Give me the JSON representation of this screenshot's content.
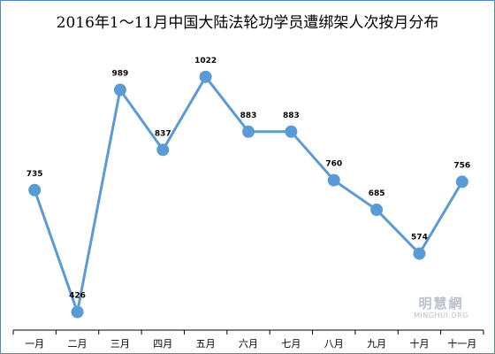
{
  "chart_data": {
    "type": "line",
    "title": "2016年1～11月中国大陆法轮功学员遭绑架人次按月分布",
    "categories": [
      "一月",
      "二月",
      "三月",
      "四月",
      "五月",
      "六月",
      "七月",
      "八月",
      "九月",
      "十月",
      "十一月"
    ],
    "series": [
      {
        "values": [
          735,
          426,
          989,
          837,
          1022,
          883,
          883,
          760,
          685,
          574,
          756
        ]
      }
    ],
    "ylim": [
      380,
      1080
    ],
    "grid": false,
    "legend": "none",
    "line_color": "#5b9bd5",
    "marker_color": "#5b9bd5"
  },
  "watermark": {
    "cn": "明慧網",
    "en": "MINGHUI.ORG"
  },
  "colors": {
    "border": "#4f86c6",
    "axis": "#000000"
  }
}
